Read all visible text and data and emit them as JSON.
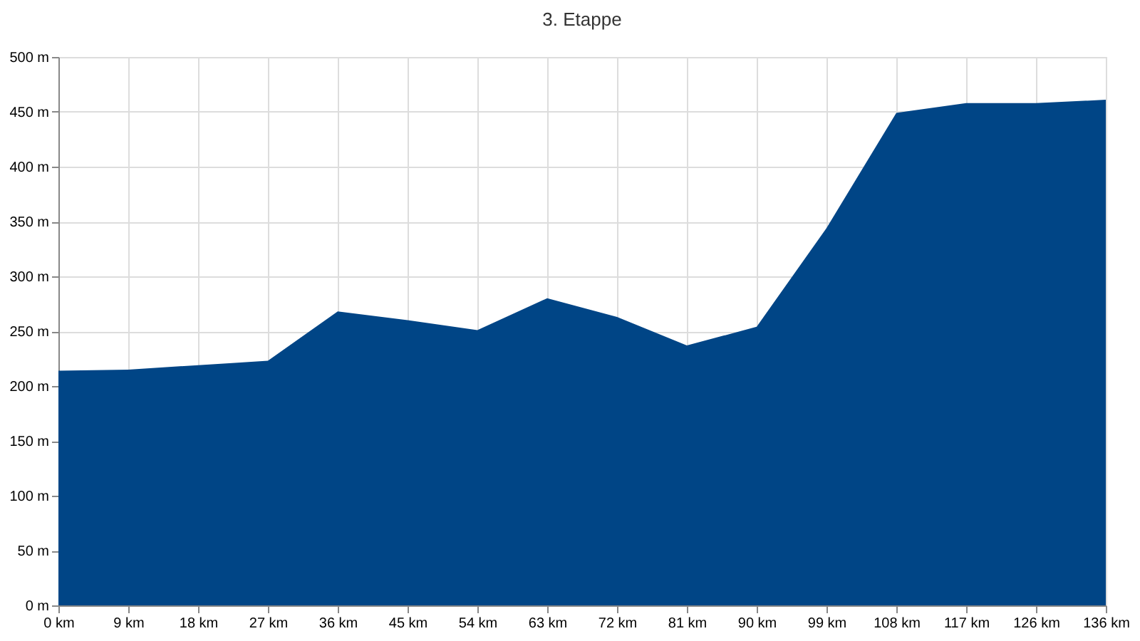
{
  "chart_data": {
    "type": "area",
    "title": "3. Etappe",
    "categories": [
      "0 km",
      "9 km",
      "18 km",
      "27 km",
      "36 km",
      "45 km",
      "54 km",
      "63 km",
      "72 km",
      "81 km",
      "90 km",
      "99 km",
      "108 km",
      "117 km",
      "126 km",
      "136 km"
    ],
    "series": [
      {
        "color": "#004586",
        "values": [
          214,
          215,
          219,
          223,
          268,
          260,
          251,
          280,
          263,
          237,
          254,
          344,
          449,
          458,
          458,
          461
        ]
      }
    ],
    "ylim": [
      0,
      500
    ],
    "yticks": [
      {
        "value": 0,
        "label": "0 m"
      },
      {
        "value": 50,
        "label": "50 m"
      },
      {
        "value": 100,
        "label": "100 m"
      },
      {
        "value": 150,
        "label": "150 m"
      },
      {
        "value": 200,
        "label": "200 m"
      },
      {
        "value": 250,
        "label": "250 m"
      },
      {
        "value": 300,
        "label": "300 m"
      },
      {
        "value": 350,
        "label": "350 m"
      },
      {
        "value": 400,
        "label": "400 m"
      },
      {
        "value": 450,
        "label": "450 m"
      },
      {
        "value": 500,
        "label": "500 m"
      }
    ],
    "grid": true
  }
}
